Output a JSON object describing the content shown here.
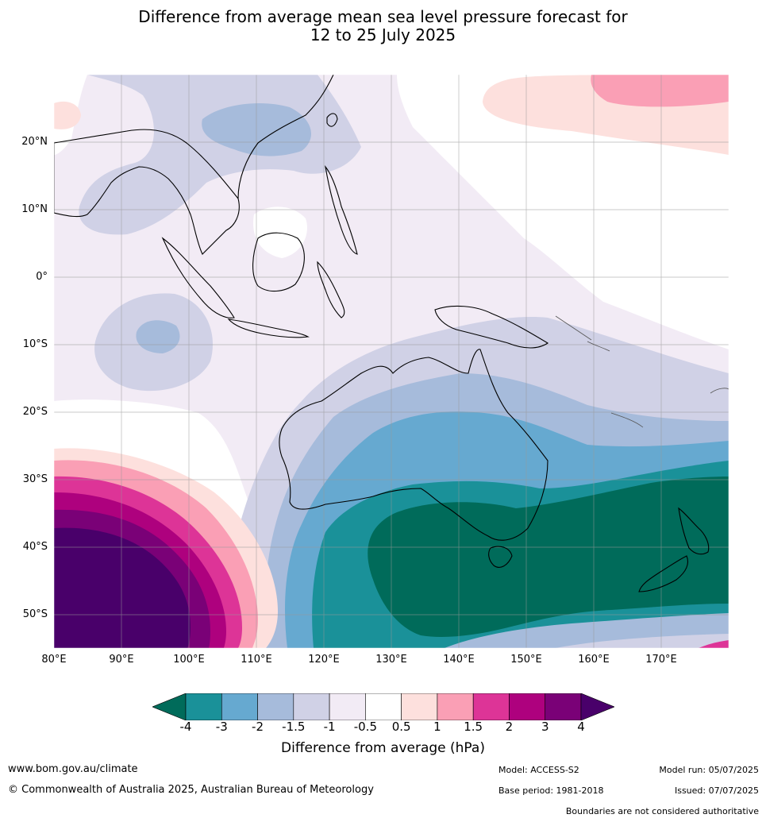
{
  "title_line1": "Difference from average mean sea level pressure forecast for",
  "title_line2": "12 to 25 July 2025",
  "lat_labels": [
    "20°N",
    "10°N",
    "0°",
    "10°S",
    "20°S",
    "30°S",
    "40°S",
    "50°S"
  ],
  "lon_labels": [
    "80°E",
    "90°E",
    "100°E",
    "110°E",
    "120°E",
    "130°E",
    "140°E",
    "150°E",
    "160°E",
    "170°E"
  ],
  "colorbar": {
    "ticks": [
      "-4",
      "-3",
      "-2",
      "-1.5",
      "-1",
      "-0.5",
      "0.5",
      "1",
      "1.5",
      "2",
      "3",
      "4"
    ],
    "colors": [
      "#006b5a",
      "#1a9199",
      "#66a9d0",
      "#a6bbdb",
      "#d0d1e6",
      "#f2ebf5",
      "#ffffff",
      "#fde0dd",
      "#fa9fb5",
      "#dd3497",
      "#ae017e",
      "#7a0177",
      "#49006a"
    ],
    "label": "Difference from average (hPa)"
  },
  "footer": {
    "website": "www.bom.gov.au/climate",
    "copyright": "© Commonwealth of Australia 2025, Australian Bureau of Meteorology",
    "model": "Model: ACCESS-S2",
    "model_run": "Model run: 05/07/2025",
    "base_period": "Base period: 1981-2018",
    "issued": "Issued: 07/07/2025",
    "disclaimer": "Boundaries are not considered authoritative"
  }
}
